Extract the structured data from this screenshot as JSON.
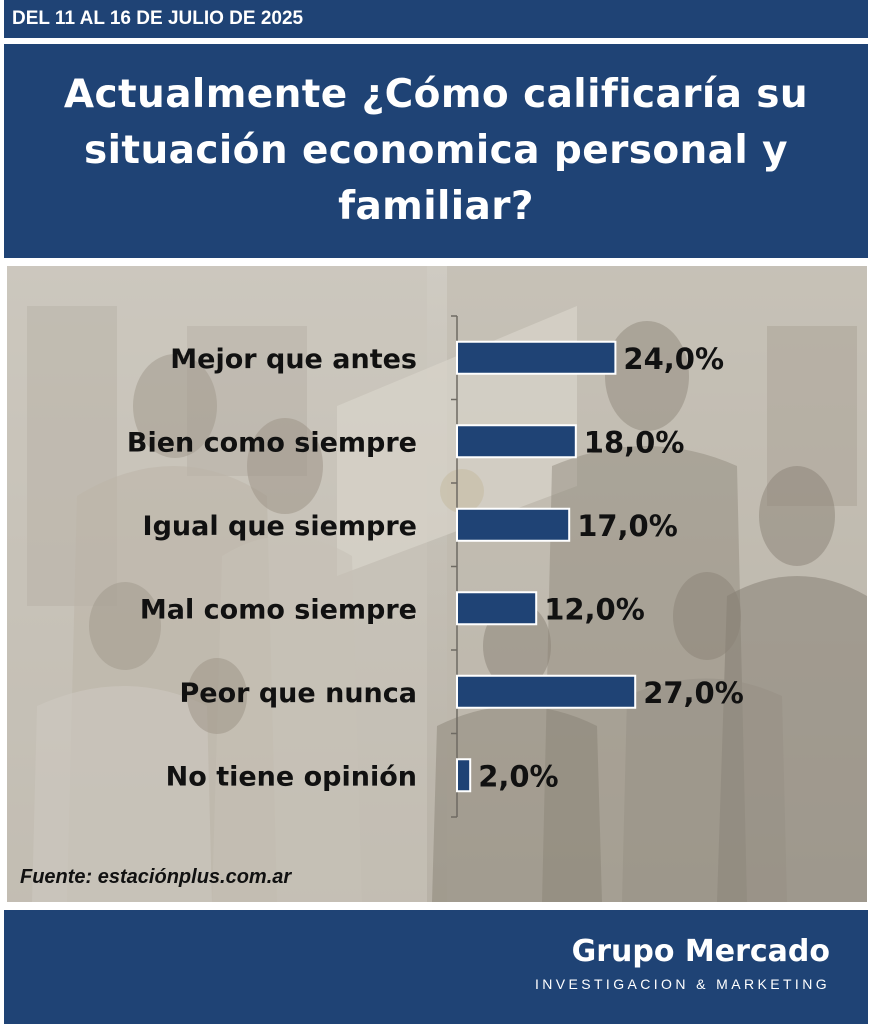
{
  "header": {
    "date_range": "DEL 11 AL 16 DE JULIO DE 2025"
  },
  "question": "Actualmente ¿Cómo calificaría su situación economica personal y familiar?",
  "chart_data": {
    "type": "bar",
    "orientation": "horizontal",
    "categories": [
      "Mejor que antes",
      "Bien como siempre",
      "Igual que siempre",
      "Mal como siempre",
      "Peor que nunca",
      "No tiene opinión"
    ],
    "values": [
      24.0,
      18.0,
      17.0,
      12.0,
      27.0,
      2.0
    ],
    "value_labels": [
      "24,0%",
      "18,0%",
      "17,0%",
      "12,0%",
      "27,0%",
      "2,0%"
    ],
    "unit": "%",
    "colors": {
      "bar": "#1f4375",
      "bar_outline": "#ffffff",
      "text": "#111111"
    },
    "xlim": [
      0,
      35
    ]
  },
  "source": "Fuente: estaciónplus.com.ar",
  "footer": {
    "brand": "Grupo Mercado",
    "tagline": "INVESTIGACION & MARKETING"
  },
  "colors": {
    "primary": "#1f4375"
  }
}
